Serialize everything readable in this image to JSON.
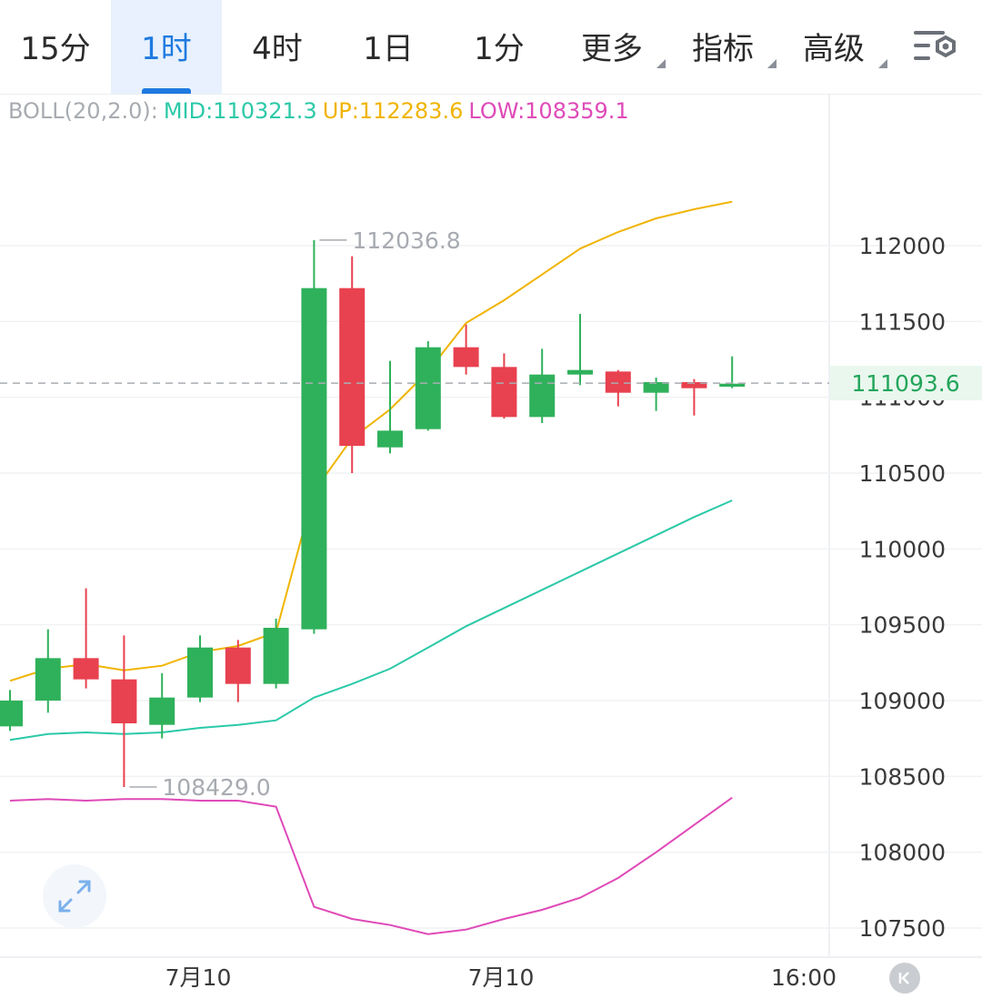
{
  "tabs": [
    {
      "label": "15分",
      "active": false,
      "dropdown": false
    },
    {
      "label": "1时",
      "active": true,
      "dropdown": false
    },
    {
      "label": "4时",
      "active": false,
      "dropdown": false
    },
    {
      "label": "1日",
      "active": false,
      "dropdown": false
    },
    {
      "label": "1分",
      "active": false,
      "dropdown": false
    },
    {
      "label": "更多",
      "active": false,
      "dropdown": true
    },
    {
      "label": "指标",
      "active": false,
      "dropdown": true
    },
    {
      "label": "高级",
      "active": false,
      "dropdown": true
    }
  ],
  "settings_icon": "chart-settings-icon",
  "indicator": {
    "name": "BOLL(20,2.0):",
    "mid_label": "MID:110321.3",
    "up_label": "UP:112283.6",
    "low_label": "LOW:108359.1"
  },
  "colors": {
    "up": "#2fb15b",
    "down": "#e8414f",
    "mid": "#2bc9a8",
    "upper": "#f0b400",
    "lower": "#df4ab8",
    "price_tag_bg": "#e9f7ee",
    "price_tag_text": "#23a55a",
    "axis_text": "#3a3a3a",
    "label_gray": "#a7abb1"
  },
  "chart_data": {
    "type": "candlestick",
    "y_range": [
      107300,
      112550
    ],
    "y_ticks": [
      112000,
      111500,
      111000,
      110500,
      110000,
      109500,
      109000,
      108500,
      108000,
      107500
    ],
    "y_tick_labels": [
      "112000",
      "111500",
      "111000",
      "110500",
      "110000",
      "109500",
      "109000",
      "108500",
      "108000",
      "107500"
    ],
    "x_tick_labels": [
      "7月10",
      "7月10",
      "16:00"
    ],
    "current_price": "111093.6",
    "current_price_value": 111093.6,
    "max_label": "112036.8",
    "min_label": "108429.0",
    "candles": [
      {
        "o": 108830,
        "c": 109000,
        "h": 109070,
        "l": 108800
      },
      {
        "o": 109000,
        "c": 109280,
        "h": 109470,
        "l": 108920
      },
      {
        "o": 109280,
        "c": 109140,
        "h": 109740,
        "l": 109080
      },
      {
        "o": 109140,
        "c": 108850,
        "h": 109430,
        "l": 108430
      },
      {
        "o": 108840,
        "c": 109020,
        "h": 109180,
        "l": 108750
      },
      {
        "o": 109020,
        "c": 109350,
        "h": 109430,
        "l": 108990
      },
      {
        "o": 109350,
        "c": 109110,
        "h": 109400,
        "l": 108990
      },
      {
        "o": 109110,
        "c": 109480,
        "h": 109540,
        "l": 109080
      },
      {
        "o": 109470,
        "c": 111720,
        "h": 112037,
        "l": 109440
      },
      {
        "o": 111720,
        "c": 110680,
        "h": 111930,
        "l": 110500
      },
      {
        "o": 110670,
        "c": 110780,
        "h": 111240,
        "l": 110630
      },
      {
        "o": 110790,
        "c": 111330,
        "h": 111370,
        "l": 110780
      },
      {
        "o": 111330,
        "c": 111200,
        "h": 111480,
        "l": 111150
      },
      {
        "o": 111200,
        "c": 110870,
        "h": 111290,
        "l": 110860
      },
      {
        "o": 110870,
        "c": 111150,
        "h": 111320,
        "l": 110830
      },
      {
        "o": 111150,
        "c": 111180,
        "h": 111550,
        "l": 111080
      },
      {
        "o": 111170,
        "c": 111030,
        "h": 111180,
        "l": 110940
      },
      {
        "o": 111030,
        "c": 111100,
        "h": 111130,
        "l": 110910
      },
      {
        "o": 111100,
        "c": 111060,
        "h": 111120,
        "l": 110880
      },
      {
        "o": 111070,
        "c": 111090,
        "h": 111270,
        "l": 111060
      }
    ],
    "boll_upper": [
      109130,
      109210,
      109240,
      109200,
      109230,
      109320,
      109360,
      109450,
      110380,
      110730,
      110920,
      111170,
      111490,
      111640,
      111810,
      111980,
      112090,
      112180,
      112240,
      112290
    ],
    "boll_mid": [
      108740,
      108780,
      108790,
      108780,
      108790,
      108820,
      108840,
      108870,
      109020,
      109110,
      109210,
      109350,
      109490,
      109610,
      109730,
      109850,
      109970,
      110090,
      110210,
      110320
    ],
    "boll_lower": [
      108340,
      108350,
      108340,
      108350,
      108350,
      108340,
      108340,
      108300,
      107640,
      107560,
      107520,
      107460,
      107490,
      107560,
      107620,
      107700,
      107830,
      108000,
      108180,
      108360
    ]
  }
}
